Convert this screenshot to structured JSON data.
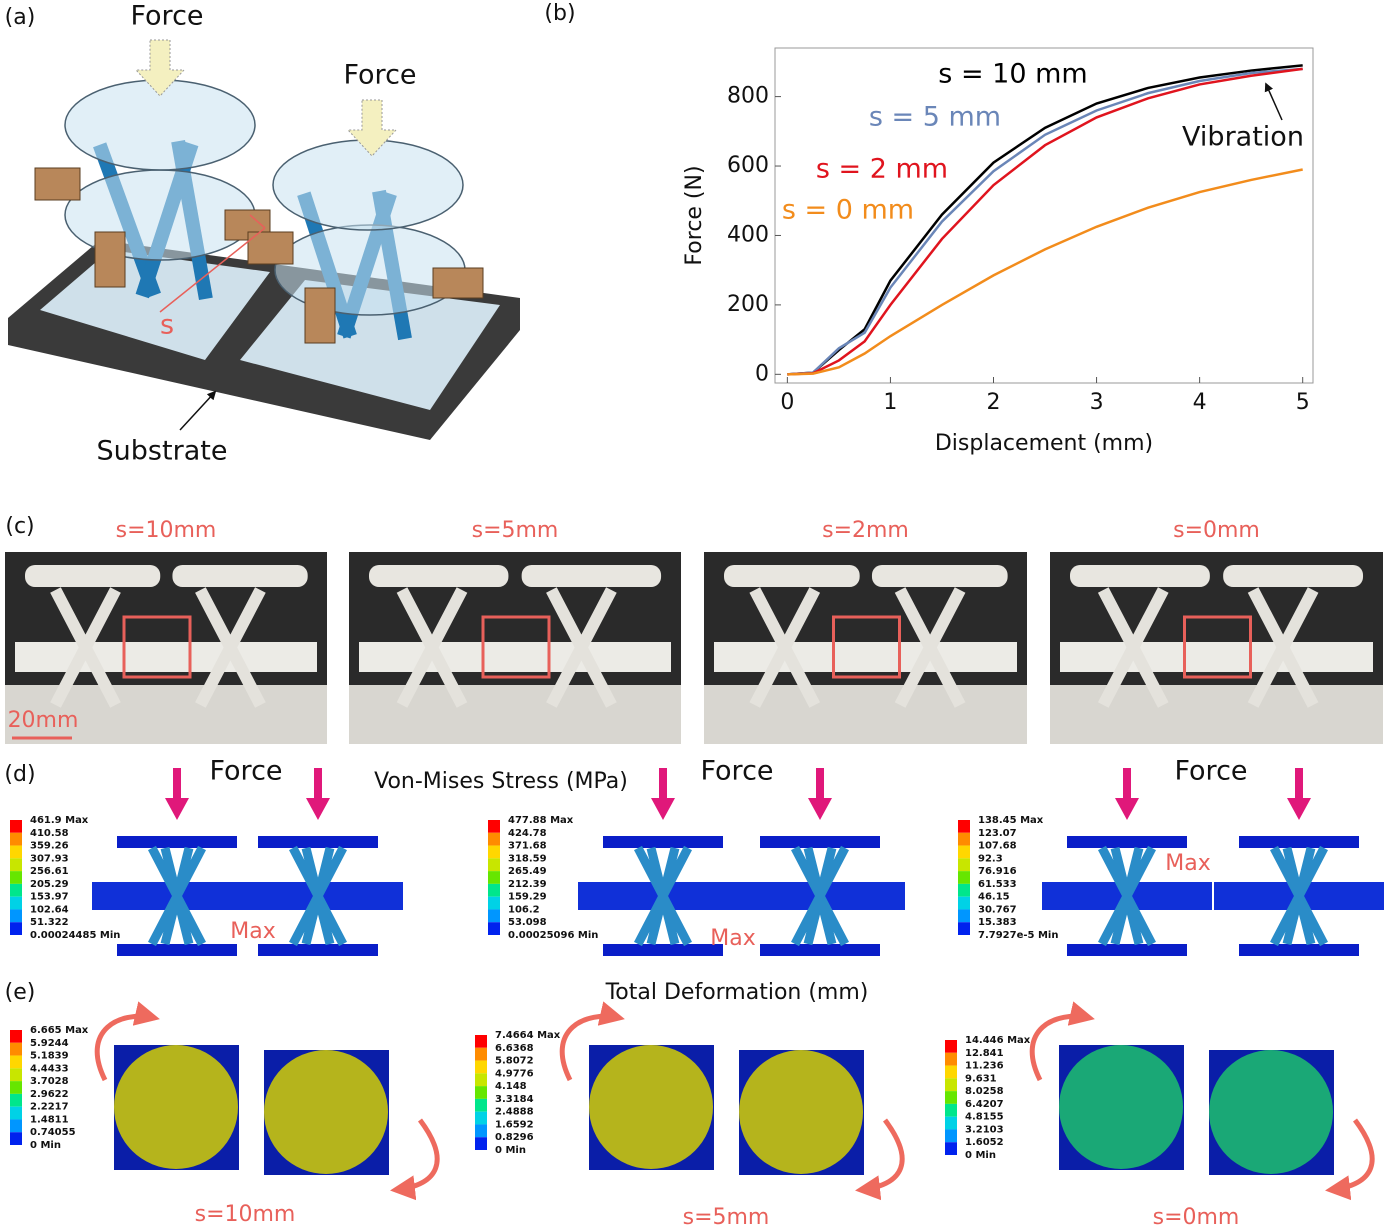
{
  "panel_labels": [
    "(a)",
    "(b)",
    "(c)",
    "(d)",
    "(e)"
  ],
  "panel_a": {
    "force_labels": [
      "Force",
      "Force"
    ],
    "s_label": "s",
    "substrate": "Substrate"
  },
  "chart_data": {
    "type": "line",
    "xlabel": "Displacement (mm)",
    "ylabel": "Force (N)",
    "x": [
      0,
      0.25,
      0.5,
      0.75,
      1,
      1.5,
      2,
      2.5,
      3,
      3.5,
      4,
      4.5,
      5
    ],
    "series": [
      {
        "name": "s = 10 mm",
        "color": "#000000",
        "values": [
          0,
          5,
          70,
          130,
          270,
          460,
          610,
          710,
          780,
          825,
          855,
          875,
          890
        ]
      },
      {
        "name": "s = 5 mm",
        "color": "#6a86b8",
        "values": [
          0,
          5,
          75,
          120,
          250,
          440,
          585,
          690,
          760,
          810,
          845,
          868,
          880
        ]
      },
      {
        "name": "s = 2 mm",
        "color": "#e0141e",
        "values": [
          0,
          3,
          40,
          95,
          200,
          390,
          545,
          660,
          740,
          795,
          835,
          860,
          880
        ]
      },
      {
        "name": "s = 0 mm",
        "color": "#f28c1c",
        "values": [
          0,
          2,
          20,
          60,
          110,
          200,
          285,
          360,
          425,
          480,
          525,
          560,
          590
        ]
      }
    ],
    "xlim": [
      -0.12,
      5.1
    ],
    "ylim": [
      -25,
      940
    ],
    "xticks": [
      0,
      1,
      2,
      3,
      4,
      5
    ],
    "yticks": [
      0,
      200,
      400,
      600,
      800
    ],
    "annotation": "Vibration"
  },
  "panel_c": {
    "titles": [
      "s=10mm",
      "s=5mm",
      "s=2mm",
      "s=0mm"
    ],
    "scale_bar": "20mm"
  },
  "panel_d": {
    "title": "Von-Mises Stress (MPa)",
    "force_labels": [
      "Force",
      "Force",
      "Force"
    ],
    "max_labels": [
      "Max",
      "Max",
      "Max"
    ],
    "legends": [
      [
        "461.9 Max",
        "410.58",
        "359.26",
        "307.93",
        "256.61",
        "205.29",
        "153.97",
        "102.64",
        "51.322",
        "0.00024485 Min"
      ],
      [
        "477.88 Max",
        "424.78",
        "371.68",
        "318.59",
        "265.49",
        "212.39",
        "159.29",
        "106.2",
        "53.098",
        "0.00025096 Min"
      ],
      [
        "138.45 Max",
        "123.07",
        "107.68",
        "92.3",
        "76.916",
        "61.533",
        "46.15",
        "30.767",
        "15.383",
        "7.7927e-5 Min"
      ]
    ]
  },
  "panel_e": {
    "title": "Total Deformation (mm)",
    "labels": [
      "s=10mm",
      "s=5mm",
      "s=0mm"
    ],
    "legends": [
      [
        "6.665 Max",
        "5.9244",
        "5.1839",
        "4.4433",
        "3.7028",
        "2.9622",
        "2.2217",
        "1.4811",
        "0.74055",
        "0 Min"
      ],
      [
        "7.4664 Max",
        "6.6368",
        "5.8072",
        "4.9776",
        "4.148",
        "3.3184",
        "2.4888",
        "1.6592",
        "0.8296",
        "0 Min"
      ],
      [
        "14.446 Max",
        "12.841",
        "11.236",
        "9.631",
        "8.0258",
        "6.4207",
        "4.8155",
        "3.2103",
        "1.6052",
        "0 Min"
      ]
    ]
  }
}
